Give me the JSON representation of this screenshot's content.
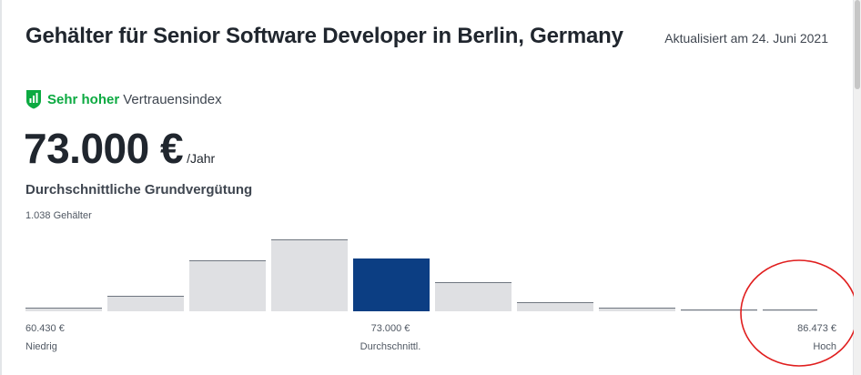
{
  "header": {
    "title": "Gehälter für Senior Software Developer in Berlin, Germany",
    "updated": "Aktualisiert am 24. Juni 2021"
  },
  "trust": {
    "strong": "Sehr hoher",
    "rest": "Vertrauensindex",
    "icon": "shield-signal-icon",
    "color": "#0caa41"
  },
  "salary": {
    "amount": "73.000 €",
    "unit": "/Jahr",
    "label": "Durchschnittliche Grundvergütung",
    "count": "1.038 Gehälter"
  },
  "histogram": {
    "low_value": "60.430 €",
    "low_label": "Niedrig",
    "avg_value": "73.000 €",
    "avg_label": "Durchschnittl.",
    "high_value": "86.473 €",
    "high_label": "Hoch"
  },
  "chart_data": {
    "type": "bar",
    "values": [
      4,
      17,
      56,
      79,
      58,
      32,
      10,
      4,
      2,
      2
    ],
    "highlight_index": 4,
    "bar_color": "#dfe0e3",
    "highlight_color": "#0c3e83",
    "ylim": [
      0,
      80
    ]
  },
  "annotation": {
    "type": "circle",
    "color": "#e01e1e"
  }
}
